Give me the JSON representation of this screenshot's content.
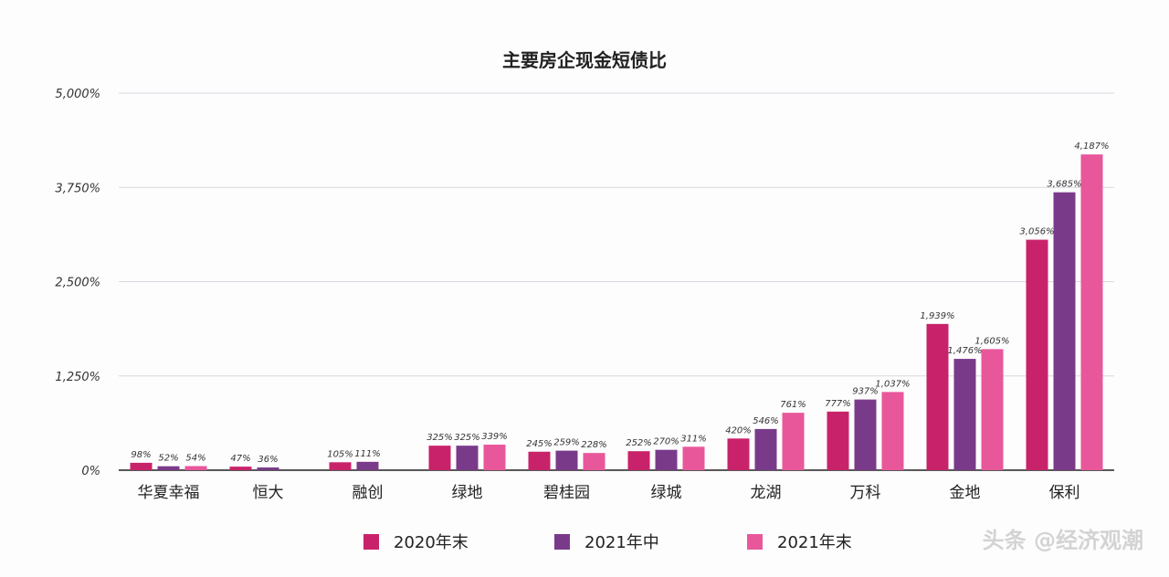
{
  "chart_data": {
    "type": "bar",
    "title": "主要房企现金短债比",
    "categories": [
      "华夏幸福",
      "恒大",
      "融创",
      "绿地",
      "碧桂园",
      "绿城",
      "龙湖",
      "万科",
      "金地",
      "保利"
    ],
    "series": [
      {
        "name": "2020年末",
        "color": "#c8236a",
        "values": [
          98,
          47,
          105,
          325,
          245,
          252,
          420,
          777,
          1939,
          3056
        ]
      },
      {
        "name": "2021年中",
        "color": "#7a3a8a",
        "values": [
          52,
          36,
          111,
          325,
          259,
          270,
          546,
          937,
          1476,
          3685
        ]
      },
      {
        "name": "2021年末",
        "color": "#e9579b",
        "values": [
          54,
          null,
          null,
          339,
          228,
          311,
          761,
          1037,
          1605,
          4187
        ]
      }
    ],
    "data_labels": [
      [
        "98%",
        "47%",
        "105%",
        "325%",
        "245%",
        "252%",
        "420%",
        "777%",
        "1,939%",
        "3,056%"
      ],
      [
        "52%",
        "36%",
        "111%",
        "325%",
        "259%",
        "270%",
        "546%",
        "937%",
        "1,476%",
        "3,685%"
      ],
      [
        "54%",
        "",
        "",
        "339%",
        "228%",
        "311%",
        "761%",
        "1,037%",
        "1,605%",
        "4,187%"
      ]
    ],
    "yticks": [
      0,
      1250,
      2500,
      3750,
      5000
    ],
    "ytick_labels": [
      "0%",
      "1,250%",
      "2,500%",
      "3,750%",
      "5,000%"
    ],
    "ylim": [
      0,
      5000
    ],
    "grid": true,
    "legend_position": "bottom",
    "xlabel": "",
    "ylabel": ""
  },
  "watermark": "头条 @经济观潮"
}
